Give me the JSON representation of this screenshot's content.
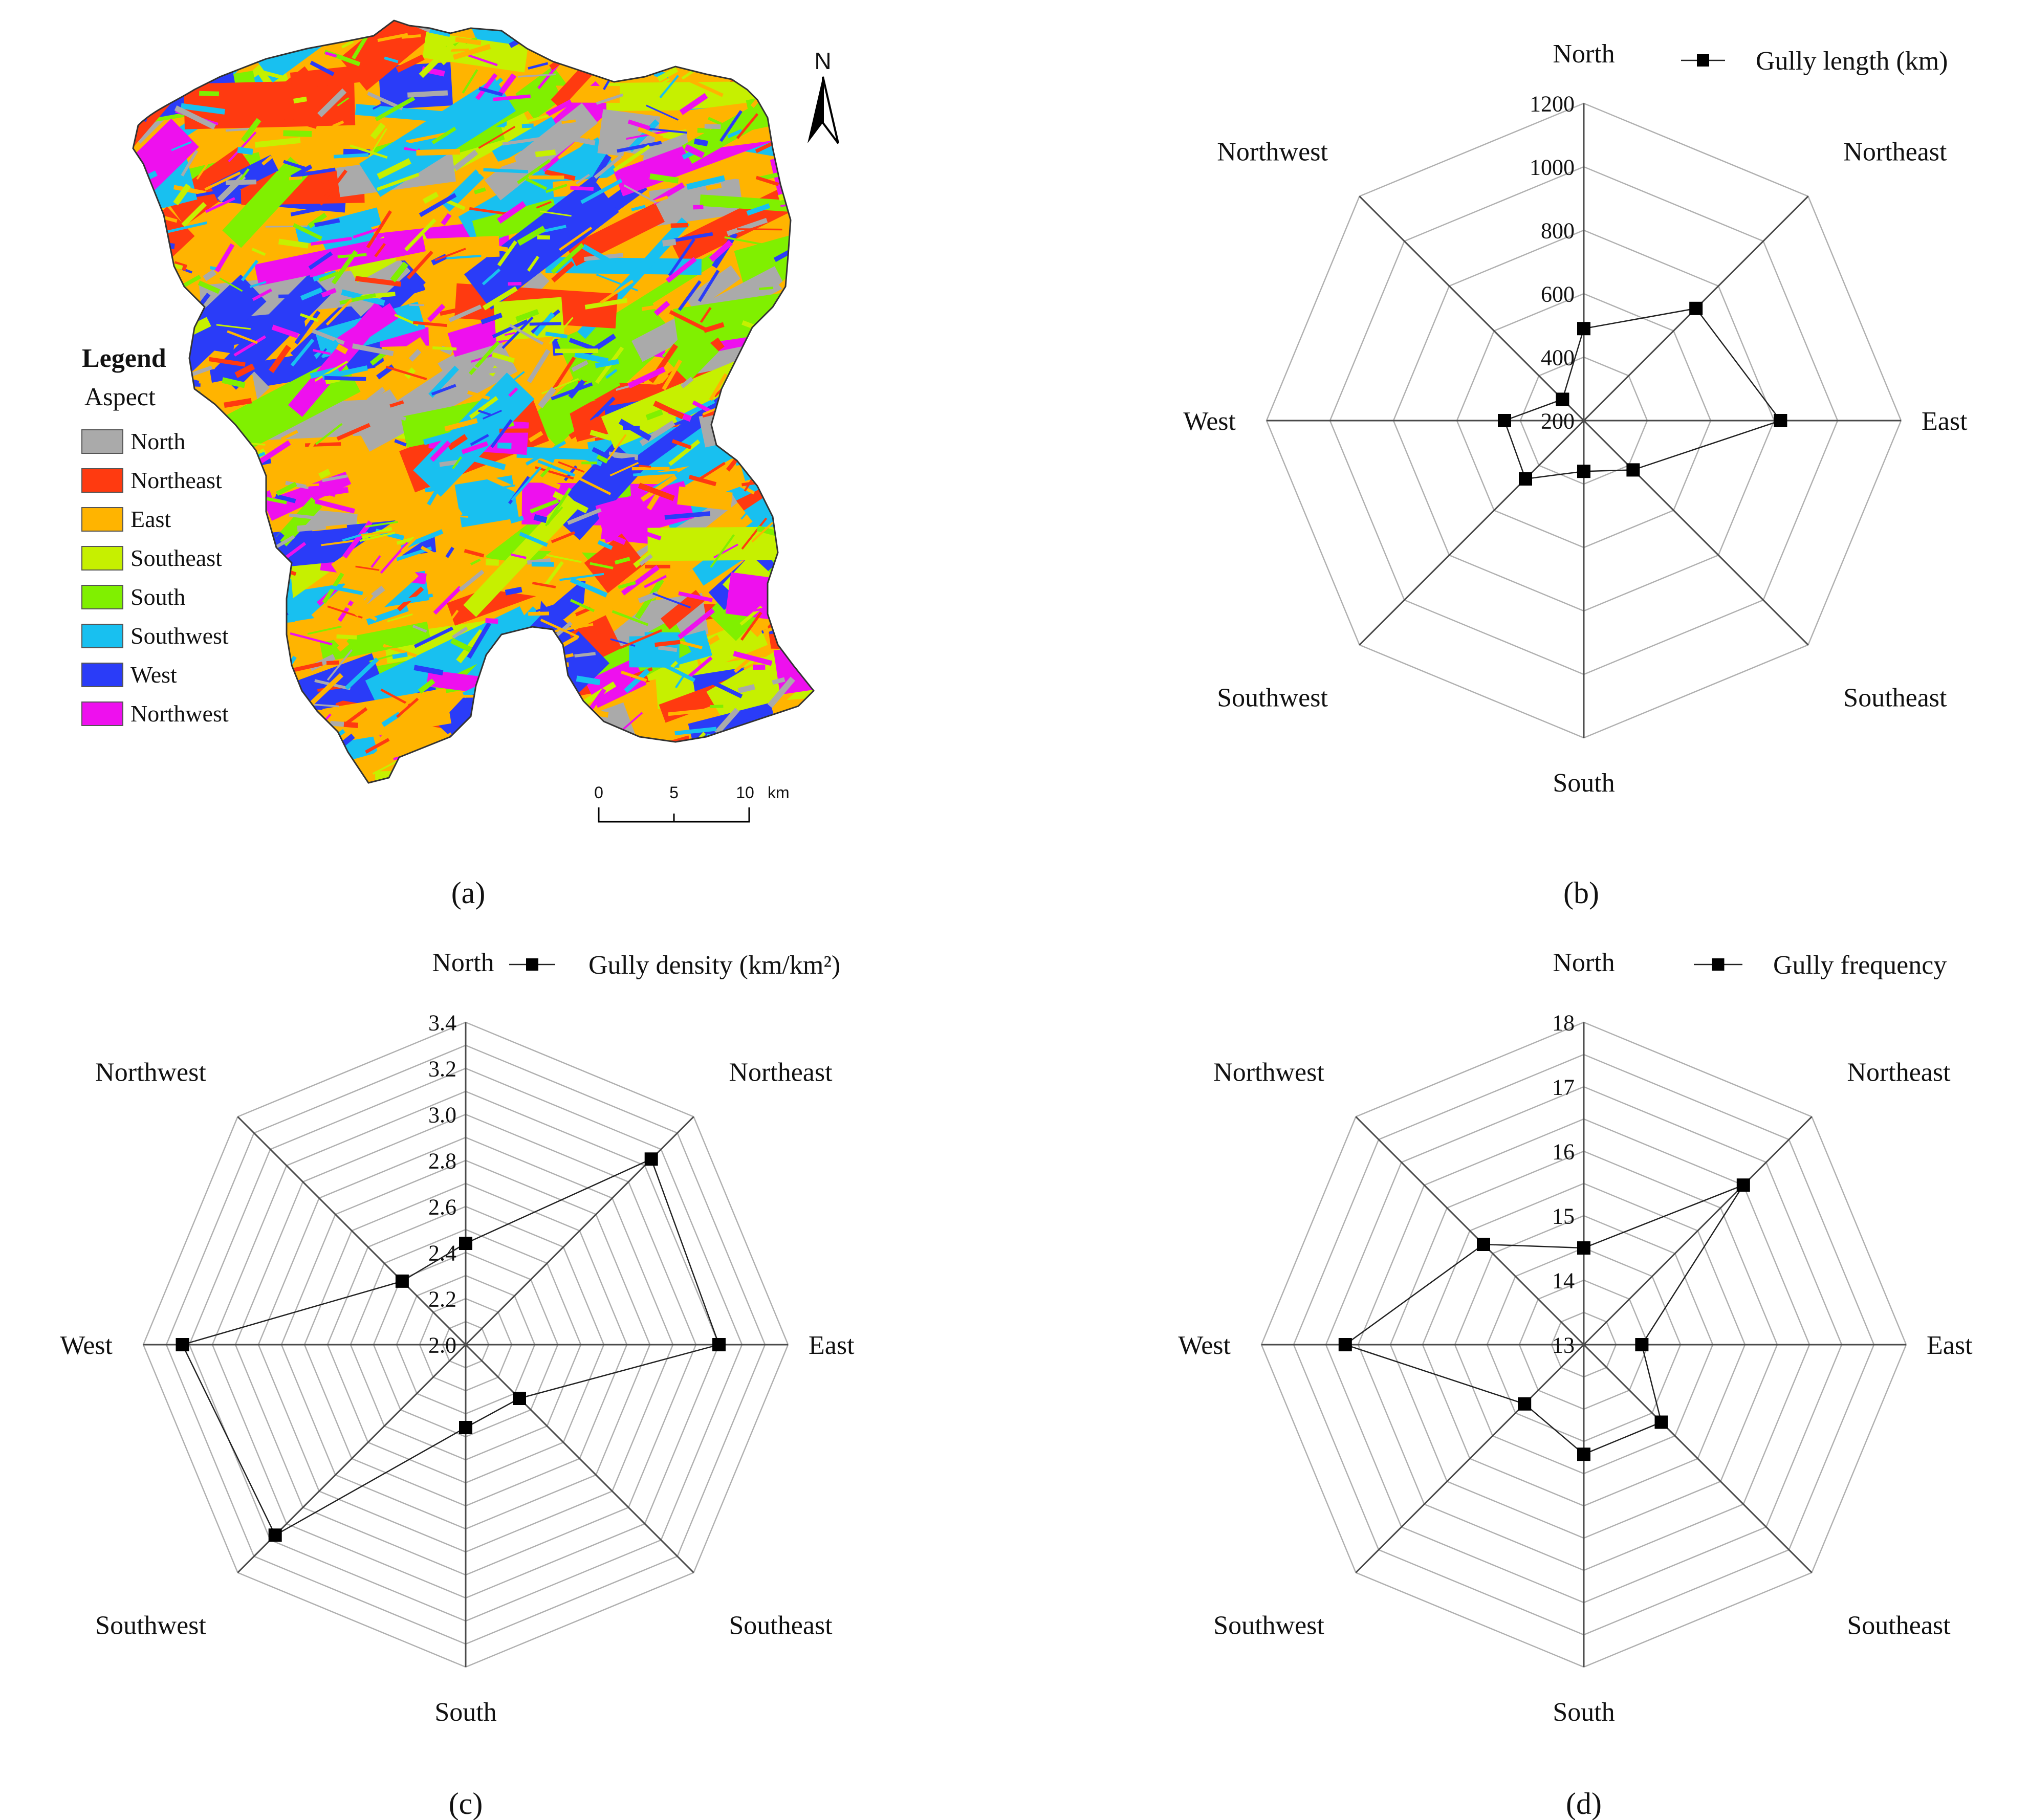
{
  "panel_labels": [
    "(a)",
    "(b)",
    "(c)",
    "(d)"
  ],
  "map": {
    "north_arrow_label": "N",
    "legend_title": "Legend",
    "legend_subtitle": "Aspect",
    "legend_items": [
      {
        "label": "North",
        "color": "#aaaaaa"
      },
      {
        "label": "Northeast",
        "color": "#ff3a10"
      },
      {
        "label": "East",
        "color": "#ffb400"
      },
      {
        "label": "Southeast",
        "color": "#c6f000"
      },
      {
        "label": "South",
        "color": "#80f000"
      },
      {
        "label": "Southwest",
        "color": "#18c0f0"
      },
      {
        "label": "West",
        "color": "#2a3cf8"
      },
      {
        "label": "Northwest",
        "color": "#ee10ee"
      }
    ],
    "scale_bar": {
      "ticks": [
        "0",
        "5",
        "10"
      ],
      "unit": "km"
    }
  },
  "chart_data": [
    {
      "type": "radar",
      "panel": "(b)",
      "categories": [
        "North",
        "Northeast",
        "East",
        "Southeast",
        "South",
        "Southwest",
        "West",
        "Northwest"
      ],
      "series": [
        {
          "name": "Gully length (km)",
          "values": [
            490,
            700,
            820,
            420,
            360,
            460,
            450,
            295
          ]
        }
      ],
      "rlim": [
        200,
        1200
      ],
      "ticks": [
        "200",
        "400",
        "600",
        "800",
        "1000",
        "1200"
      ],
      "rings": 5,
      "legend_position": "top-right"
    },
    {
      "type": "radar",
      "panel": "(c)",
      "categories": [
        "North",
        "Northeast",
        "East",
        "Southeast",
        "South",
        "Southwest",
        "West",
        "Northwest"
      ],
      "series": [
        {
          "name": "Gully density (km/km²)",
          "values": [
            2.44,
            3.14,
            3.1,
            2.33,
            2.36,
            3.17,
            3.23,
            2.39
          ]
        }
      ],
      "rlim": [
        2.0,
        3.4
      ],
      "ticks": [
        "2.0",
        "2.2",
        "2.4",
        "2.6",
        "2.8",
        "3.0",
        "3.2",
        "3.4"
      ],
      "rings": 14,
      "legend_position": "top-right"
    },
    {
      "type": "radar",
      "panel": "(d)",
      "categories": [
        "North",
        "Northeast",
        "East",
        "Southeast",
        "South",
        "Southwest",
        "West",
        "Northwest"
      ],
      "series": [
        {
          "name": "Gully frequency",
          "values": [
            14.5,
            16.5,
            13.9,
            14.7,
            14.7,
            14.3,
            16.7,
            15.2
          ]
        }
      ],
      "rlim": [
        13,
        18
      ],
      "ticks": [
        "13",
        "14",
        "15",
        "16",
        "17",
        "18"
      ],
      "rings": 10,
      "legend_position": "top-right"
    }
  ]
}
